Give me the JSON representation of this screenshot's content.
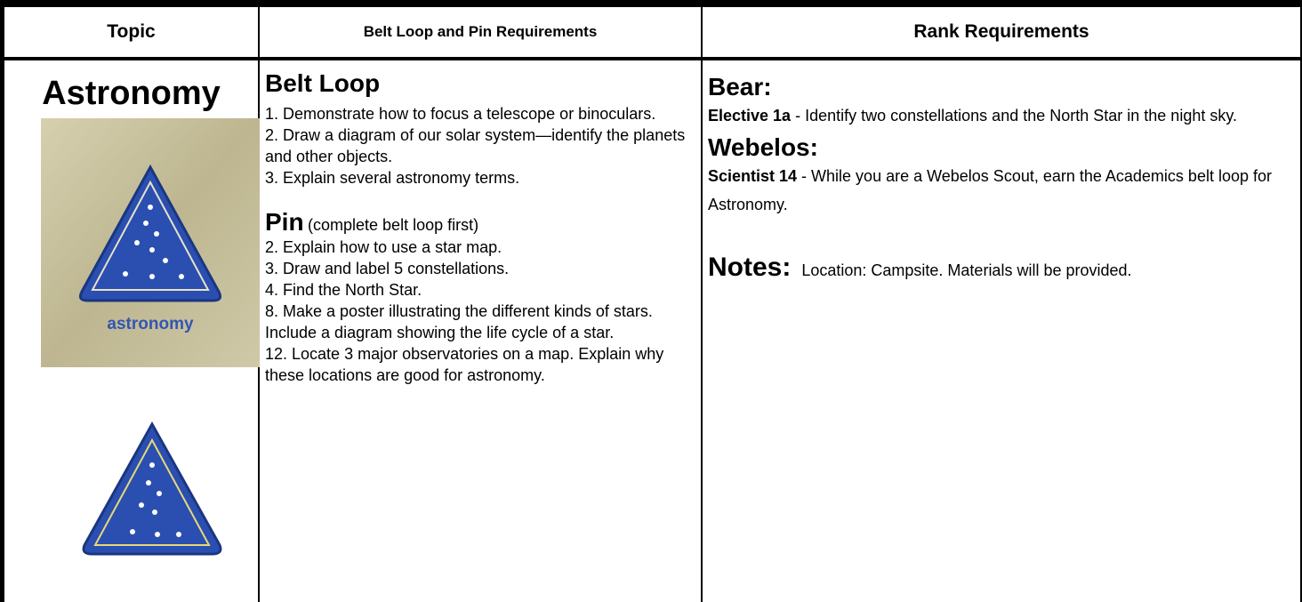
{
  "header": [
    "Topic",
    "Belt Loop and Pin Requirements",
    "Rank Requirements"
  ],
  "topic": {
    "title": "Astronomy",
    "badge_label": "astronomy"
  },
  "belt_loop": {
    "title": "Belt Loop",
    "items": [
      "1. Demonstrate how to focus a telescope or binoculars.",
      "2. Draw a diagram of our solar system—identify the planets and other objects.",
      "3. Explain several astronomy terms."
    ]
  },
  "pin": {
    "title": "Pin",
    "note": "(complete belt loop first)",
    "items": [
      "2. Explain how to use a star map.",
      "3. Draw and label 5 constellations.",
      "4. Find the North Star.",
      "8. Make a poster illustrating the different kinds of stars. Include a diagram showing the life cycle of a star.",
      "12. Locate 3 major observatories on a map. Explain why these locations are good for astronomy."
    ]
  },
  "rank": {
    "sections": [
      {
        "title": "Bear:",
        "label": "Elective 1a",
        "text": " - Identify two constellations and the North Star in the night sky."
      },
      {
        "title": "Webelos:",
        "label": "Scientist 14",
        "text": " - While you are a Webelos Scout, earn the Academics belt loop for Astronomy."
      }
    ],
    "notes": {
      "title": "Notes:",
      "text": "Location: Campsite.  Materials will be provided."
    }
  }
}
